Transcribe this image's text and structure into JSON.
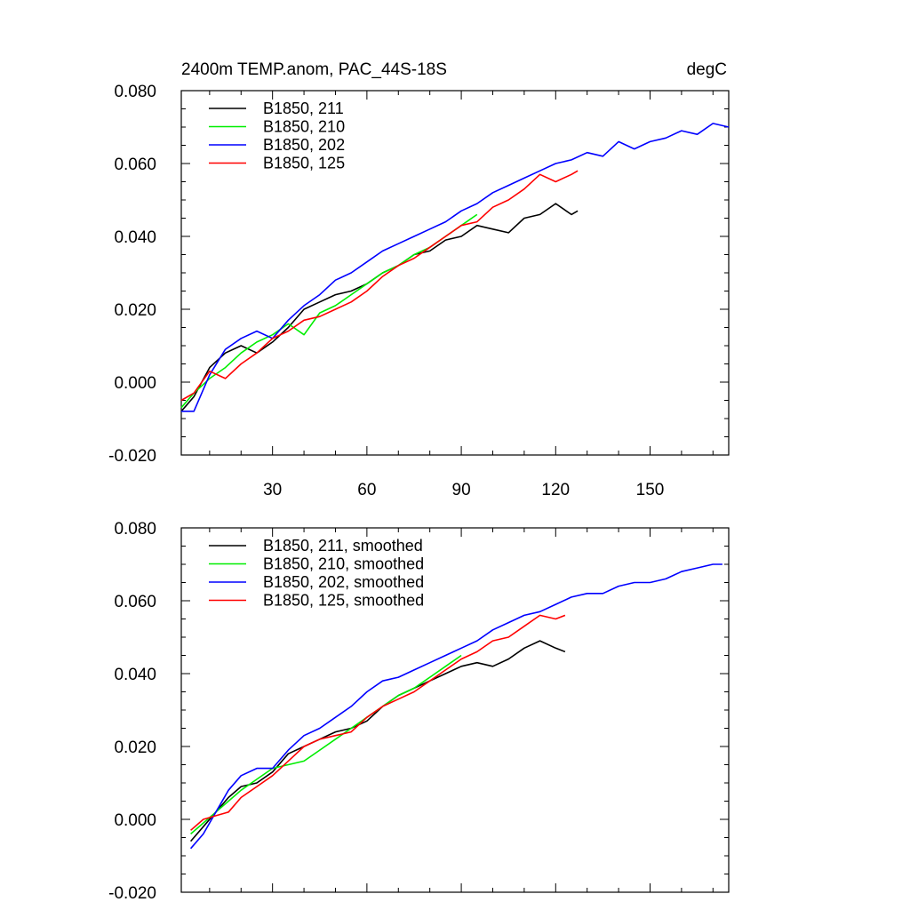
{
  "chart_data": [
    {
      "type": "line",
      "title": "2400m TEMP.anom, PAC_44S-18S",
      "units": "degC",
      "xlim": [
        1,
        175
      ],
      "ylim": [
        -0.02,
        0.08
      ],
      "xticks": [
        30,
        60,
        90,
        120,
        150
      ],
      "yticks": [
        -0.02,
        0.0,
        0.02,
        0.04,
        0.06,
        0.08
      ],
      "ytick_labels": [
        "-0.020",
        "0.000",
        "0.020",
        "0.040",
        "0.060",
        "0.080"
      ],
      "legend_position": "top-left",
      "series": [
        {
          "name": "B1850, 211",
          "color": "#000000",
          "x": [
            1,
            5,
            10,
            15,
            20,
            25,
            30,
            35,
            40,
            45,
            50,
            55,
            60,
            65,
            70,
            75,
            80,
            85,
            90,
            95,
            100,
            105,
            110,
            115,
            120,
            125,
            127
          ],
          "y": [
            -0.008,
            -0.004,
            0.004,
            0.008,
            0.01,
            0.008,
            0.011,
            0.015,
            0.02,
            0.022,
            0.024,
            0.025,
            0.027,
            0.03,
            0.032,
            0.035,
            0.036,
            0.039,
            0.04,
            0.043,
            0.042,
            0.041,
            0.045,
            0.046,
            0.049,
            0.046,
            0.047
          ]
        },
        {
          "name": "B1850, 210",
          "color": "#00ee00",
          "x": [
            1,
            5,
            10,
            15,
            20,
            25,
            30,
            35,
            40,
            45,
            50,
            55,
            60,
            65,
            70,
            75,
            80,
            85,
            90,
            95
          ],
          "y": [
            -0.007,
            -0.003,
            0.001,
            0.004,
            0.008,
            0.011,
            0.013,
            0.016,
            0.013,
            0.019,
            0.021,
            0.024,
            0.027,
            0.03,
            0.032,
            0.035,
            0.037,
            0.04,
            0.043,
            0.046
          ]
        },
        {
          "name": "B1850, 202",
          "color": "#0000ff",
          "x": [
            1,
            5,
            10,
            15,
            20,
            25,
            30,
            35,
            40,
            45,
            50,
            55,
            60,
            65,
            70,
            75,
            80,
            85,
            90,
            95,
            100,
            105,
            110,
            115,
            120,
            125,
            130,
            135,
            140,
            145,
            150,
            155,
            160,
            165,
            170,
            175
          ],
          "y": [
            -0.008,
            -0.008,
            0.002,
            0.009,
            0.012,
            0.014,
            0.012,
            0.017,
            0.021,
            0.024,
            0.028,
            0.03,
            0.033,
            0.036,
            0.038,
            0.04,
            0.042,
            0.044,
            0.047,
            0.049,
            0.052,
            0.054,
            0.056,
            0.058,
            0.06,
            0.061,
            0.063,
            0.062,
            0.066,
            0.064,
            0.066,
            0.067,
            0.069,
            0.068,
            0.071,
            0.07
          ]
        },
        {
          "name": "B1850, 125",
          "color": "#ff0000",
          "x": [
            1,
            5,
            10,
            15,
            20,
            25,
            30,
            35,
            40,
            45,
            50,
            55,
            60,
            65,
            70,
            75,
            80,
            85,
            90,
            95,
            100,
            105,
            110,
            115,
            120,
            125,
            127
          ],
          "y": [
            -0.005,
            -0.003,
            0.003,
            0.001,
            0.005,
            0.008,
            0.012,
            0.014,
            0.017,
            0.018,
            0.02,
            0.022,
            0.025,
            0.029,
            0.032,
            0.034,
            0.037,
            0.04,
            0.043,
            0.044,
            0.048,
            0.05,
            0.053,
            0.057,
            0.055,
            0.057,
            0.058
          ]
        }
      ]
    },
    {
      "type": "line",
      "title": "",
      "xlim": [
        1,
        175
      ],
      "ylim": [
        -0.02,
        0.08
      ],
      "xticks": [
        30,
        60,
        90,
        120,
        150
      ],
      "yticks": [
        -0.02,
        0.0,
        0.02,
        0.04,
        0.06,
        0.08
      ],
      "ytick_labels": [
        "-0.020",
        "0.000",
        "0.020",
        "0.040",
        "0.060",
        "0.080"
      ],
      "legend_position": "top-left",
      "series": [
        {
          "name": "B1850, 211, smoothed",
          "color": "#000000",
          "x": [
            4,
            8,
            12,
            16,
            20,
            25,
            30,
            35,
            40,
            45,
            50,
            55,
            60,
            65,
            70,
            75,
            80,
            85,
            90,
            95,
            100,
            105,
            110,
            115,
            120,
            123
          ],
          "y": [
            -0.006,
            -0.002,
            0.002,
            0.006,
            0.009,
            0.01,
            0.013,
            0.018,
            0.02,
            0.022,
            0.024,
            0.025,
            0.027,
            0.031,
            0.034,
            0.036,
            0.038,
            0.04,
            0.042,
            0.043,
            0.042,
            0.044,
            0.047,
            0.049,
            0.047,
            0.046
          ]
        },
        {
          "name": "B1850, 210, smoothed",
          "color": "#00ee00",
          "x": [
            4,
            8,
            12,
            16,
            20,
            25,
            30,
            35,
            40,
            45,
            50,
            55,
            60,
            65,
            70,
            75,
            80,
            85,
            90
          ],
          "y": [
            -0.004,
            -0.001,
            0.002,
            0.005,
            0.008,
            0.011,
            0.014,
            0.015,
            0.016,
            0.019,
            0.022,
            0.025,
            0.028,
            0.031,
            0.034,
            0.036,
            0.039,
            0.042,
            0.045
          ]
        },
        {
          "name": "B1850, 202, smoothed",
          "color": "#0000ff",
          "x": [
            4,
            8,
            12,
            16,
            20,
            25,
            30,
            35,
            40,
            45,
            50,
            55,
            60,
            65,
            70,
            75,
            80,
            85,
            90,
            95,
            100,
            105,
            110,
            115,
            120,
            125,
            130,
            135,
            140,
            145,
            150,
            155,
            160,
            165,
            170,
            173
          ],
          "y": [
            -0.008,
            -0.004,
            0.002,
            0.008,
            0.012,
            0.014,
            0.014,
            0.019,
            0.023,
            0.025,
            0.028,
            0.031,
            0.035,
            0.038,
            0.039,
            0.041,
            0.043,
            0.045,
            0.047,
            0.049,
            0.052,
            0.054,
            0.056,
            0.057,
            0.059,
            0.061,
            0.062,
            0.062,
            0.064,
            0.065,
            0.065,
            0.066,
            0.068,
            0.069,
            0.07,
            0.07
          ]
        },
        {
          "name": "B1850, 125, smoothed",
          "color": "#ff0000",
          "x": [
            4,
            8,
            12,
            16,
            20,
            25,
            30,
            35,
            40,
            45,
            50,
            55,
            60,
            65,
            70,
            75,
            80,
            85,
            90,
            95,
            100,
            105,
            110,
            115,
            120,
            123
          ],
          "y": [
            -0.003,
            0.0,
            0.001,
            0.002,
            0.006,
            0.009,
            0.012,
            0.016,
            0.02,
            0.022,
            0.023,
            0.024,
            0.028,
            0.031,
            0.033,
            0.035,
            0.038,
            0.041,
            0.044,
            0.046,
            0.049,
            0.05,
            0.053,
            0.056,
            0.055,
            0.056
          ]
        }
      ]
    }
  ]
}
